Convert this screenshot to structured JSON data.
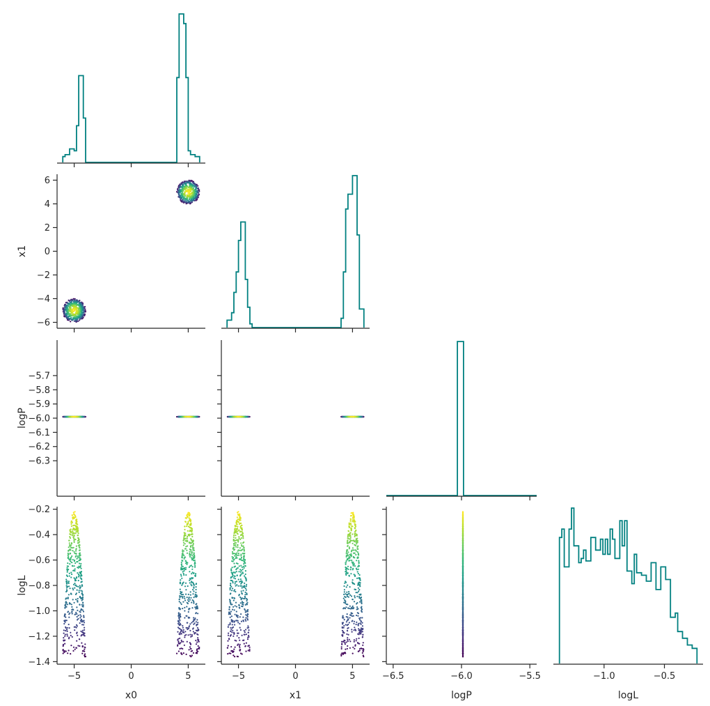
{
  "chart_data": {
    "type": "corner",
    "variables": [
      "x0",
      "x1",
      "logP",
      "logL"
    ],
    "colors": {
      "histogram": "#008080",
      "axis": "#262626",
      "colormap": "viridis"
    },
    "ranges": {
      "x0": [
        -6.5,
        6.5
      ],
      "x1": [
        -6.5,
        6.5
      ],
      "logP": [
        -6.55,
        -5.45
      ],
      "logL": [
        -1.42,
        -0.18
      ]
    },
    "ticks": {
      "x0": {
        "values": [
          -5,
          0,
          5
        ],
        "labels": [
          "−5",
          "0",
          "5"
        ]
      },
      "x1_row": {
        "values": [
          6,
          4,
          2,
          0,
          -2,
          -4,
          -6
        ],
        "labels": [
          "6",
          "4",
          "2",
          "0",
          "−2",
          "−4",
          "−6"
        ]
      },
      "x1_col": {
        "values": [
          -5,
          0,
          5
        ],
        "labels": [
          "−5",
          "0",
          "5"
        ]
      },
      "logP_row": {
        "values": [
          -5.7,
          -5.8,
          -5.9,
          -6.0,
          -6.1,
          -6.2,
          -6.3
        ],
        "labels": [
          "−5.7",
          "−5.8",
          "−5.9",
          "−6.0",
          "−6.1",
          "−6.2",
          "−6.3"
        ]
      },
      "logP_col": {
        "values": [
          -6.5,
          -6.0,
          -5.5
        ],
        "labels": [
          "−6.5",
          "−6.0",
          "−5.5"
        ]
      },
      "logL_row": {
        "values": [
          -0.2,
          -0.4,
          -0.6,
          -0.8,
          -1.0,
          -1.2,
          -1.4
        ],
        "labels": [
          "−0.2",
          "−0.4",
          "−0.6",
          "−0.8",
          "−1.0",
          "−1.2",
          "−1.4"
        ]
      },
      "logL_col": {
        "values": [
          -1.0,
          -0.5
        ],
        "labels": [
          "−1.0",
          "−0.5"
        ]
      }
    },
    "histograms": {
      "x0": {
        "bins": [
          -6.0,
          -5.8,
          -5.6,
          -5.4,
          -5.2,
          -5.0,
          -4.8,
          -4.6,
          -4.4,
          -4.2,
          -4.0,
          -3.8,
          3.8,
          4.0,
          4.2,
          4.4,
          4.6,
          4.8,
          5.0,
          5.2,
          5.4,
          5.6,
          5.8,
          6.0
        ],
        "counts": [
          3,
          4,
          4,
          7,
          7,
          6,
          19,
          45,
          45,
          23,
          0,
          0,
          0,
          44,
          77,
          77,
          72,
          44,
          6,
          4,
          4,
          3,
          3
        ]
      },
      "x1": {
        "bins": [
          -6.0,
          -5.8,
          -5.6,
          -5.4,
          -5.2,
          -5.0,
          -4.8,
          -4.6,
          -4.4,
          -4.2,
          -4.0,
          -3.8,
          3.8,
          4.0,
          4.2,
          4.4,
          4.6,
          4.8,
          5.0,
          5.2,
          5.4,
          5.6,
          5.8,
          6.0
        ],
        "counts": [
          4,
          4,
          8,
          19,
          30,
          47,
          57,
          57,
          26,
          11,
          2,
          0,
          0,
          5,
          30,
          64,
          72,
          72,
          82,
          82,
          50,
          10,
          10
        ]
      },
      "logP": {
        "bins": [
          -6.55,
          -6.03,
          -5.985,
          -5.45
        ],
        "counts": [
          0,
          100,
          0
        ]
      },
      "logL": {
        "bins": [
          -1.37,
          -1.35,
          -1.33,
          -1.31,
          -1.29,
          -1.27,
          -1.25,
          -1.23,
          -1.21,
          -1.19,
          -1.17,
          -1.15,
          -1.13,
          -1.11,
          -1.09,
          -1.07,
          -1.05,
          -1.03,
          -1.01,
          -0.99,
          -0.97,
          -0.95,
          -0.93,
          -0.91,
          -0.89,
          -0.87,
          -0.85,
          -0.83,
          -0.81,
          -0.79,
          -0.77,
          -0.75,
          -0.73,
          -0.71,
          -0.69,
          -0.67,
          -0.65,
          -0.63,
          -0.61,
          -0.59,
          -0.57,
          -0.55,
          -0.53,
          -0.51,
          -0.49,
          -0.47,
          -0.45,
          -0.43,
          -0.41,
          -0.39,
          -0.37,
          -0.35,
          -0.33,
          -0.31,
          -0.29,
          -0.27,
          -0.25,
          -0.23
        ],
        "counts": [
          150,
          160,
          115,
          115,
          160,
          185,
          140,
          140,
          120,
          125,
          135,
          122,
          122,
          150,
          150,
          135,
          135,
          148,
          130,
          148,
          130,
          160,
          148,
          125,
          125,
          170,
          140,
          170,
          110,
          110,
          95,
          130,
          108,
          108,
          105,
          105,
          98,
          98,
          120,
          120,
          88,
          88,
          115,
          115,
          100,
          100,
          55,
          55,
          60,
          38,
          38,
          30,
          30,
          22,
          22,
          18,
          18
        ]
      }
    },
    "scatter_samples": 1000,
    "axis_labels": {
      "rows": [
        "",
        "x1",
        "logP",
        "logL"
      ],
      "cols": [
        "x0",
        "x1",
        "logP",
        "logL"
      ]
    }
  }
}
